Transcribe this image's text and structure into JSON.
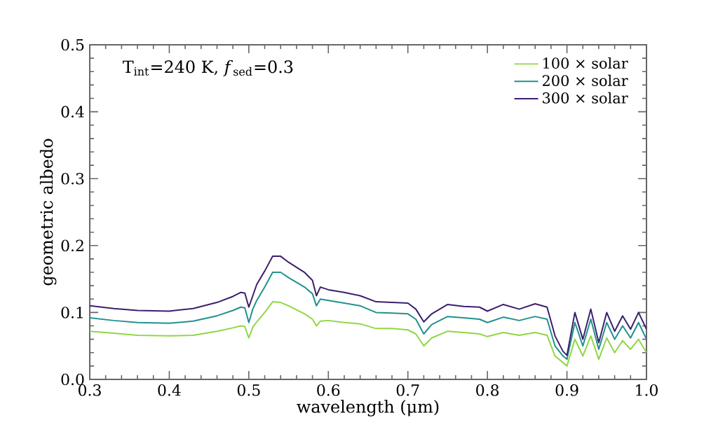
{
  "chart_data": {
    "type": "line",
    "xlabel": "wavelength (μm)",
    "ylabel": "geometric albedo",
    "annotations": [
      "T$_{int}$=240 K, *f*$_{sed}$=0.3"
    ],
    "x": [
      0.3,
      0.33,
      0.36,
      0.4,
      0.43,
      0.46,
      0.48,
      0.49,
      0.495,
      0.5,
      0.505,
      0.51,
      0.52,
      0.53,
      0.54,
      0.55,
      0.57,
      0.58,
      0.585,
      0.59,
      0.6,
      0.62,
      0.64,
      0.66,
      0.68,
      0.7,
      0.71,
      0.72,
      0.73,
      0.75,
      0.77,
      0.79,
      0.8,
      0.82,
      0.84,
      0.86,
      0.875,
      0.885,
      0.895,
      0.9,
      0.91,
      0.92,
      0.93,
      0.94,
      0.95,
      0.96,
      0.97,
      0.98,
      0.99,
      1.0
    ],
    "series": [
      {
        "name": "100 × solar",
        "color": "#8fd744",
        "values": [
          0.072,
          0.069,
          0.066,
          0.065,
          0.066,
          0.072,
          0.077,
          0.08,
          0.079,
          0.062,
          0.078,
          0.086,
          0.1,
          0.116,
          0.115,
          0.11,
          0.098,
          0.09,
          0.08,
          0.087,
          0.088,
          0.085,
          0.083,
          0.076,
          0.076,
          0.074,
          0.068,
          0.05,
          0.062,
          0.072,
          0.07,
          0.068,
          0.064,
          0.07,
          0.066,
          0.07,
          0.066,
          0.035,
          0.025,
          0.02,
          0.06,
          0.035,
          0.065,
          0.03,
          0.062,
          0.04,
          0.058,
          0.045,
          0.06,
          0.04
        ]
      },
      {
        "name": "200 × solar",
        "color": "#21918c",
        "values": [
          0.092,
          0.088,
          0.085,
          0.084,
          0.087,
          0.095,
          0.103,
          0.108,
          0.107,
          0.085,
          0.105,
          0.118,
          0.138,
          0.16,
          0.16,
          0.152,
          0.138,
          0.128,
          0.11,
          0.12,
          0.118,
          0.114,
          0.11,
          0.1,
          0.099,
          0.098,
          0.09,
          0.068,
          0.082,
          0.094,
          0.092,
          0.09,
          0.085,
          0.093,
          0.088,
          0.094,
          0.09,
          0.05,
          0.035,
          0.03,
          0.085,
          0.05,
          0.09,
          0.045,
          0.085,
          0.06,
          0.08,
          0.062,
          0.085,
          0.06
        ]
      },
      {
        "name": "300 × solar",
        "color": "#3b1f6e",
        "values": [
          0.11,
          0.106,
          0.103,
          0.102,
          0.106,
          0.115,
          0.124,
          0.13,
          0.129,
          0.108,
          0.125,
          0.142,
          0.162,
          0.184,
          0.184,
          0.175,
          0.16,
          0.148,
          0.125,
          0.138,
          0.134,
          0.13,
          0.125,
          0.116,
          0.115,
          0.114,
          0.105,
          0.086,
          0.098,
          0.112,
          0.109,
          0.108,
          0.102,
          0.112,
          0.105,
          0.113,
          0.108,
          0.065,
          0.042,
          0.036,
          0.1,
          0.06,
          0.105,
          0.055,
          0.1,
          0.072,
          0.095,
          0.075,
          0.1,
          0.075
        ]
      }
    ],
    "xlim": [
      0.3,
      1.0
    ],
    "ylim": [
      0,
      0.5
    ],
    "xticks": [
      0.3,
      0.4,
      0.5,
      0.6,
      0.7,
      0.8,
      0.9,
      {
        "value": 1.0,
        "label": "1.0"
      }
    ],
    "yticks": [
      {
        "value": 0,
        "label": "0.0"
      },
      0.1,
      0.2,
      0.3,
      0.4,
      0.5
    ],
    "legend": "top right",
    "grid": false,
    "marker": "none",
    "line_style": "solid"
  }
}
